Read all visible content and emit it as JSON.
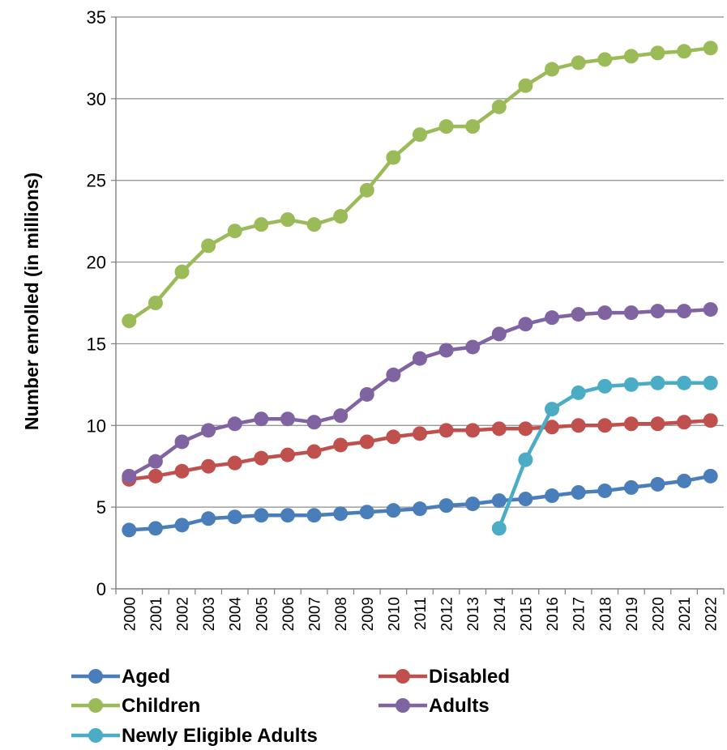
{
  "chart_data": {
    "type": "line",
    "title": "",
    "xlabel": "",
    "ylabel": "Number enrolled  (in millions)",
    "ylim": [
      0,
      35
    ],
    "yticks": [
      0,
      5,
      10,
      15,
      20,
      25,
      30,
      35
    ],
    "grid": "horizontal",
    "legend_position": "bottom",
    "categories": [
      "2000",
      "2001",
      "2002",
      "2003",
      "2004",
      "2005",
      "2006",
      "2007",
      "2008",
      "2009",
      "2010",
      "2011",
      "2012",
      "2013",
      "2014",
      "2015",
      "2016",
      "2017",
      "2018",
      "2019",
      "2020",
      "2021",
      "2022"
    ],
    "series": [
      {
        "name": "Aged",
        "color": "#4a7ebb",
        "values": [
          3.6,
          3.7,
          3.9,
          4.3,
          4.4,
          4.5,
          4.5,
          4.5,
          4.6,
          4.7,
          4.8,
          4.9,
          5.1,
          5.2,
          5.4,
          5.5,
          5.7,
          5.9,
          6.0,
          6.2,
          6.4,
          6.6,
          6.9
        ]
      },
      {
        "name": "Disabled",
        "color": "#c0504d",
        "values": [
          6.7,
          6.9,
          7.2,
          7.5,
          7.7,
          8.0,
          8.2,
          8.4,
          8.8,
          9.0,
          9.3,
          9.5,
          9.7,
          9.7,
          9.8,
          9.8,
          9.9,
          10.0,
          10.0,
          10.1,
          10.1,
          10.2,
          10.3
        ]
      },
      {
        "name": "Children",
        "color": "#9bbb59",
        "values": [
          16.4,
          17.5,
          19.4,
          21.0,
          21.9,
          22.3,
          22.6,
          22.3,
          22.8,
          24.4,
          26.4,
          27.8,
          28.3,
          28.3,
          29.5,
          30.8,
          31.8,
          32.2,
          32.4,
          32.6,
          32.8,
          32.9,
          33.1
        ]
      },
      {
        "name": "Adults",
        "color": "#8064a2",
        "values": [
          6.9,
          7.8,
          9.0,
          9.7,
          10.1,
          10.4,
          10.4,
          10.2,
          10.6,
          11.9,
          13.1,
          14.1,
          14.6,
          14.8,
          15.6,
          16.2,
          16.6,
          16.8,
          16.9,
          16.9,
          17.0,
          17.0,
          17.1
        ]
      },
      {
        "name": "Newly Eligible Adults",
        "color": "#4bacc6",
        "values": [
          null,
          null,
          null,
          null,
          null,
          null,
          null,
          null,
          null,
          null,
          null,
          null,
          null,
          null,
          3.7,
          7.9,
          11.0,
          12.0,
          12.4,
          12.5,
          12.6,
          12.6,
          12.6
        ]
      }
    ]
  }
}
